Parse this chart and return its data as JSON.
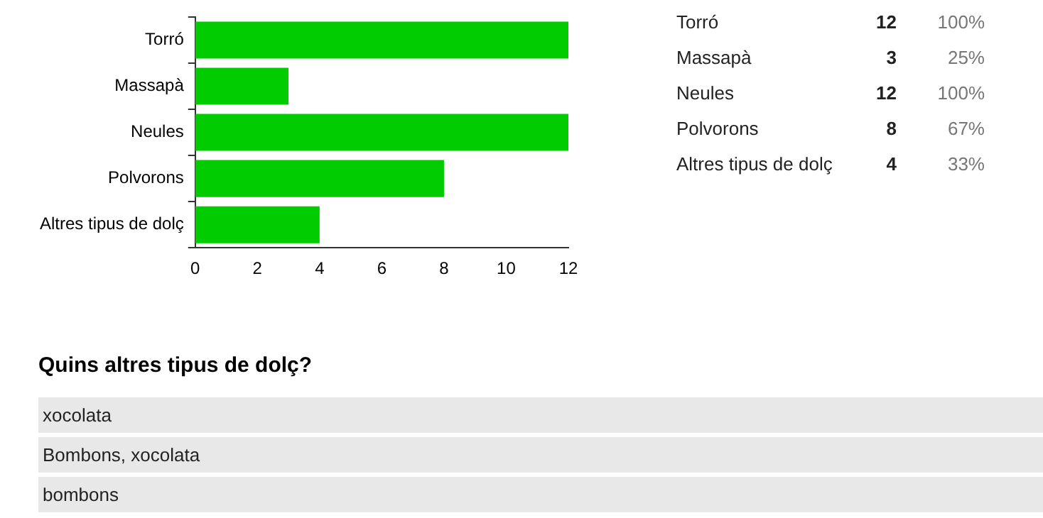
{
  "chart_data": {
    "type": "bar",
    "orientation": "horizontal",
    "categories": [
      "Torró",
      "Massapà",
      "Neules",
      "Polvorons",
      "Altres tipus de dolç"
    ],
    "values": [
      12,
      3,
      12,
      8,
      4
    ],
    "color": "#00cc00",
    "xlim": [
      0,
      12
    ],
    "xticks": [
      0,
      2,
      4,
      6,
      8,
      10,
      12
    ],
    "grid": false,
    "legend": false,
    "annotations": [
      "12",
      "100%",
      "3",
      "25%",
      "12",
      "100%",
      "8",
      "67%",
      "4",
      "33%",
      "Quins altres tipus de dolç?",
      "xocolata",
      "Bombons, xocolata",
      "bombons"
    ]
  }
}
